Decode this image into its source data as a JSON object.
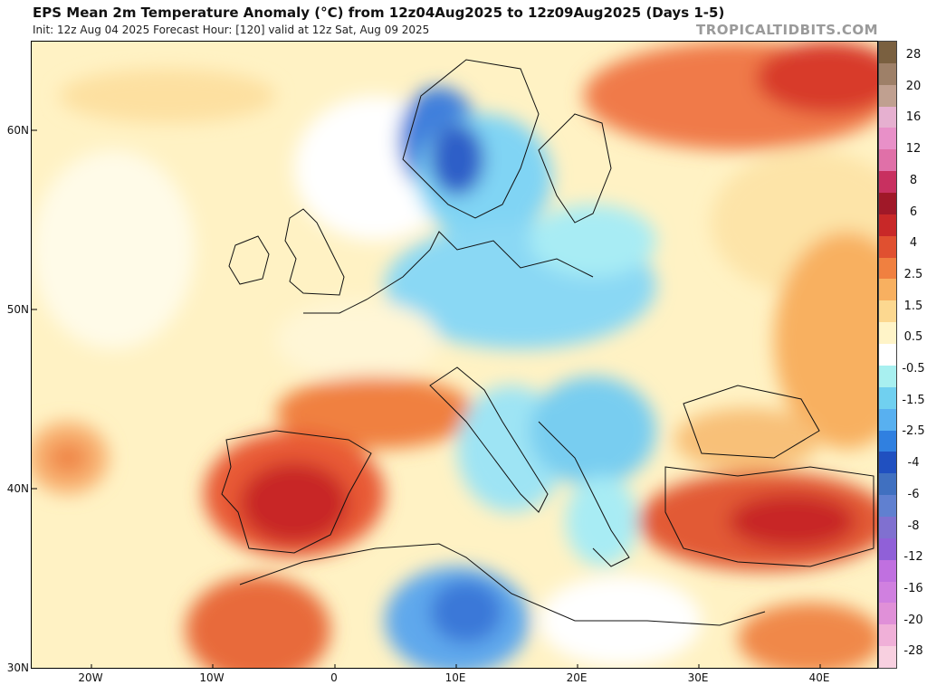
{
  "header": {
    "title": "EPS Mean 2m Temperature Anomaly (°C) from 12z04Aug2025 to 12z09Aug2025 (Days 1-5)",
    "subtitle": "Init: 12z Aug 04 2025   Forecast Hour: [120]   valid at 12z Sat, Aug 09 2025",
    "brand": "TROPICALTIDBITS.COM"
  },
  "axes": {
    "lat_labels": [
      "60N",
      "50N",
      "40N",
      "30N"
    ],
    "lon_labels": [
      "20W",
      "10W",
      "0",
      "10E",
      "20E",
      "30E",
      "40E"
    ]
  },
  "colorbar": {
    "labels": [
      "28",
      "20",
      "16",
      "12",
      "8",
      "6",
      "4",
      "2.5",
      "1.5",
      "0.5",
      "-0.5",
      "-1.5",
      "-2.5",
      "-4",
      "-6",
      "-8",
      "-12",
      "-16",
      "-20",
      "-28"
    ],
    "colors": [
      "#7a6040",
      "#9e8068",
      "#c0a090",
      "#e6b0d0",
      "#e890c8",
      "#e070a8",
      "#c83060",
      "#a01828",
      "#c82828",
      "#e05030",
      "#f08040",
      "#f8b060",
      "#fcd890",
      "#fff4c8",
      "#ffffff",
      "#a8f0f0",
      "#70d0f0",
      "#58b0f0",
      "#3080e0",
      "#2050c0",
      "#4070c0",
      "#6080d0",
      "#8070d0",
      "#9060d8",
      "#c070e0",
      "#d080e0",
      "#e090d8",
      "#f0b0d8",
      "#f8d0e0"
    ]
  }
}
